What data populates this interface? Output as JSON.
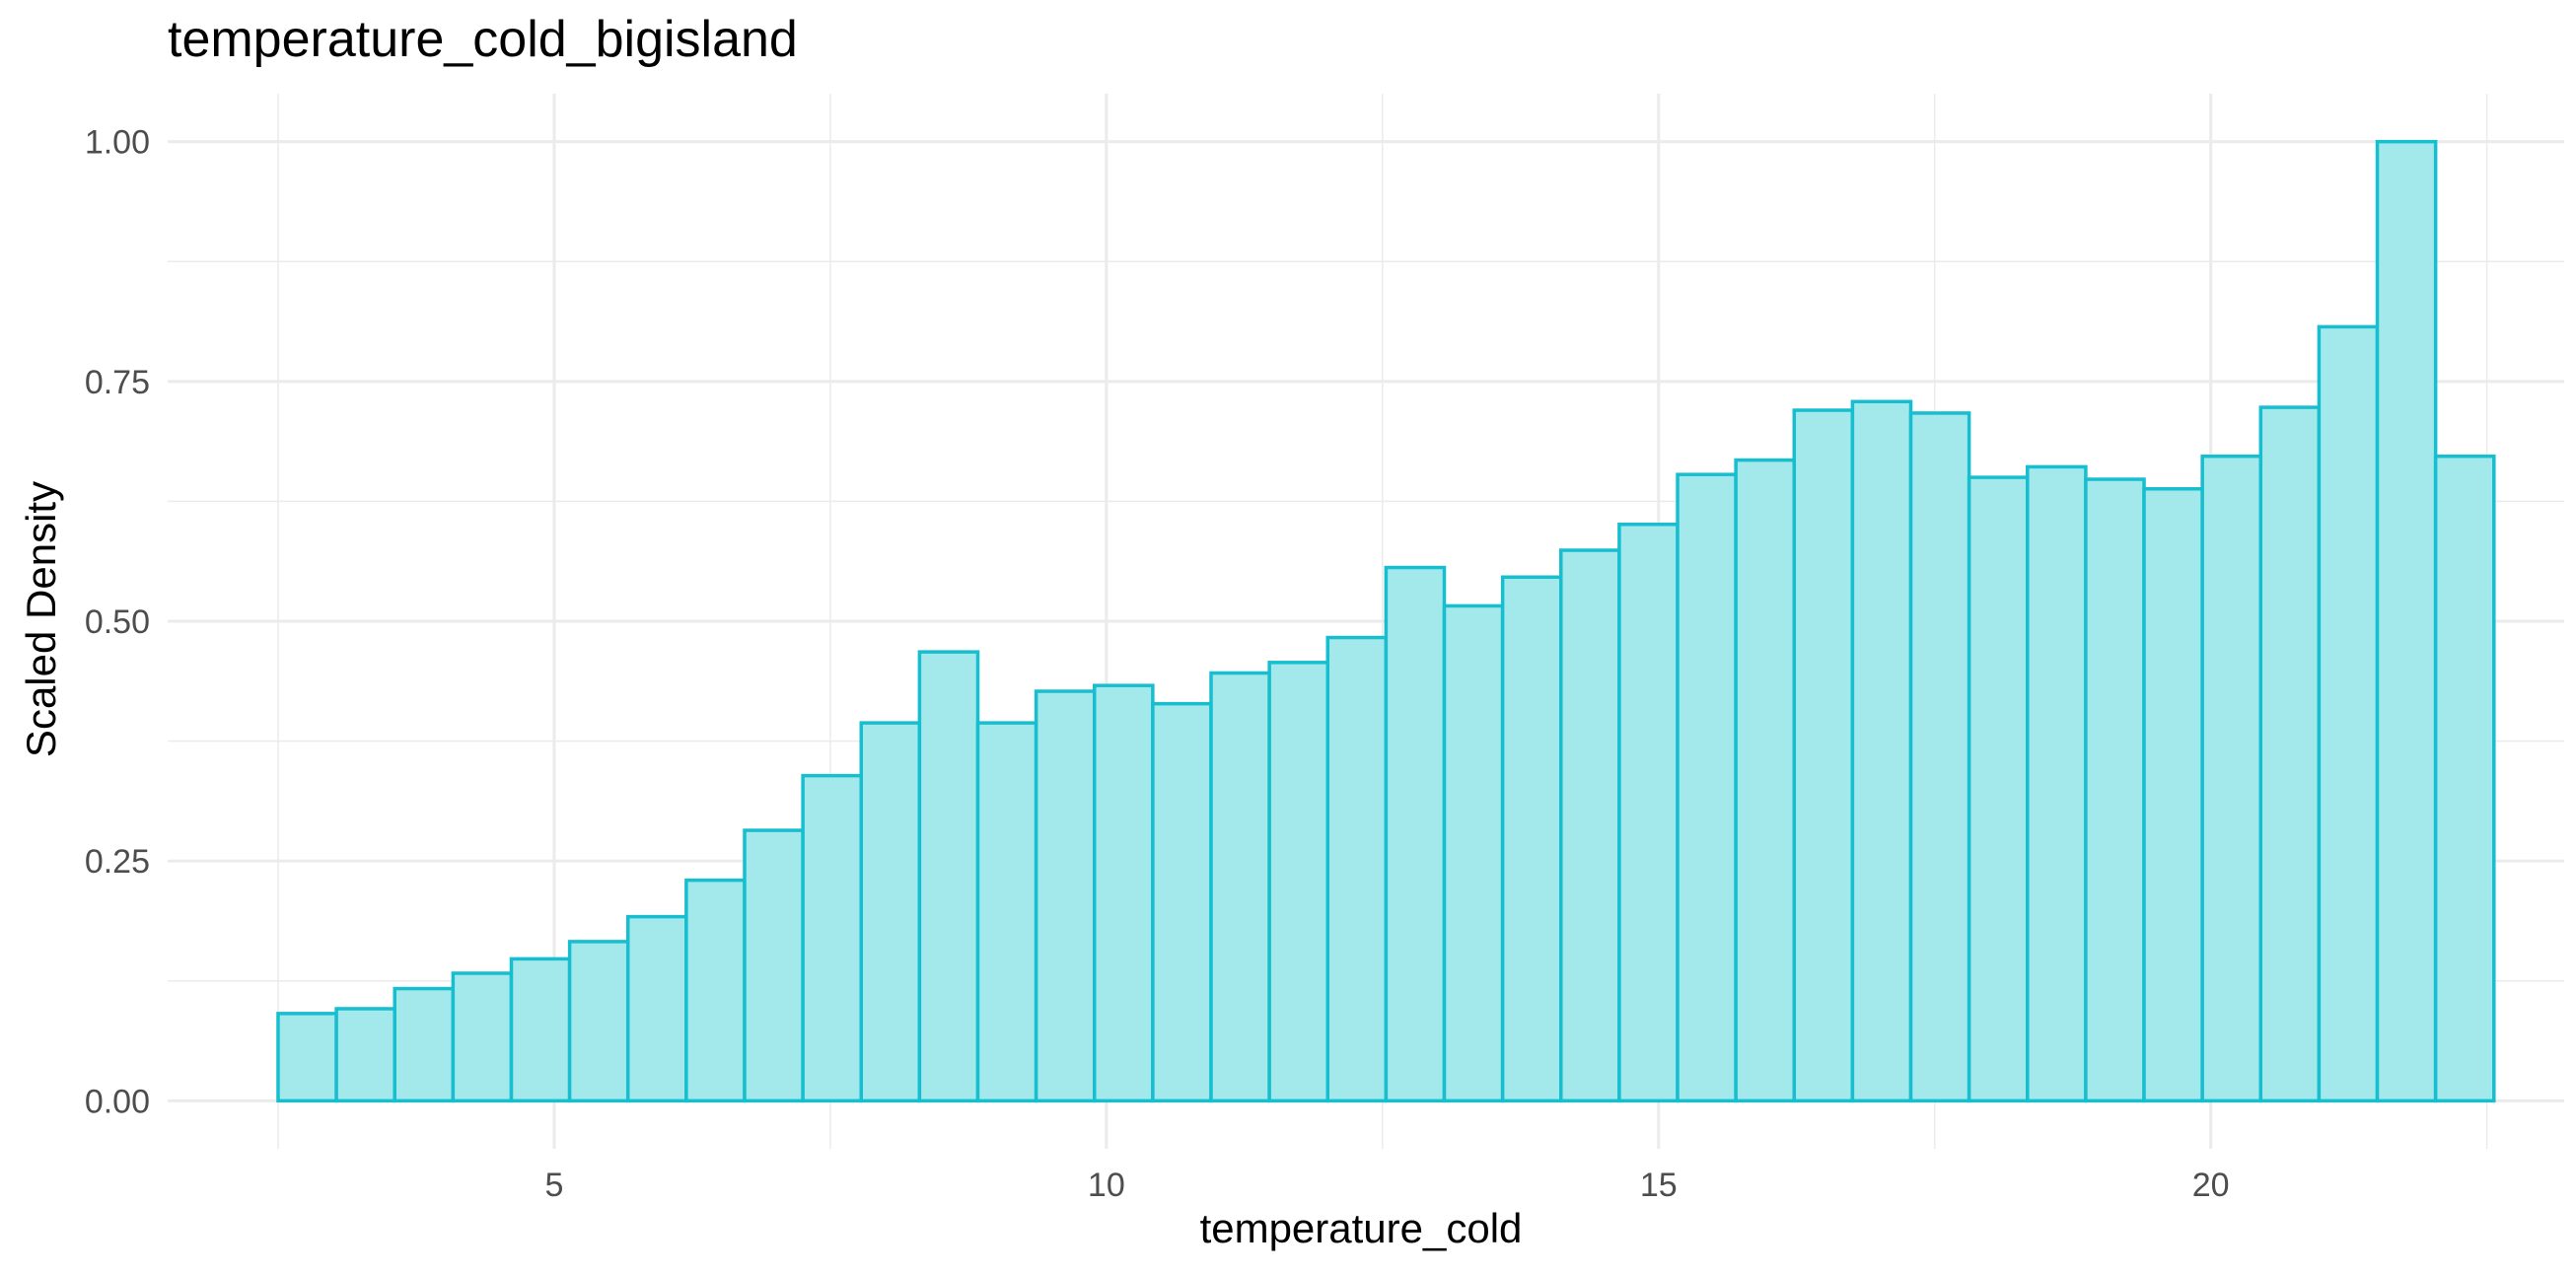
{
  "chart_data": {
    "type": "bar",
    "subtype": "histogram",
    "title": "temperature_cold_bigisland",
    "xlabel": "temperature_cold",
    "ylabel": "Scaled Density",
    "xlim": [
      1.5,
      23.2
    ],
    "ylim": [
      -0.05,
      1.05
    ],
    "x_ticks": [
      5,
      10,
      15,
      20
    ],
    "x_tick_labels": [
      "5",
      "10",
      "15",
      "20"
    ],
    "y_ticks": [
      0,
      0.25,
      0.5,
      0.75,
      1.0
    ],
    "y_tick_labels": [
      "0.00",
      "0.25",
      "0.50",
      "0.75",
      "1.00"
    ],
    "grid": true,
    "legend": "none",
    "colors": {
      "fill": "#a3e8eb",
      "outline": "#17becf",
      "grid": "#ebebeb"
    },
    "bin_width": 0.528,
    "bin_start": 2.5,
    "values": [
      0.091,
      0.096,
      0.117,
      0.133,
      0.148,
      0.166,
      0.192,
      0.23,
      0.282,
      0.339,
      0.394,
      0.468,
      0.394,
      0.427,
      0.433,
      0.414,
      0.446,
      0.457,
      0.483,
      0.556,
      0.516,
      0.546,
      0.574,
      0.601,
      0.653,
      0.668,
      0.72,
      0.729,
      0.717,
      0.65,
      0.661,
      0.648,
      0.638,
      0.672,
      0.723,
      0.807,
      1.0,
      0.672
    ]
  }
}
